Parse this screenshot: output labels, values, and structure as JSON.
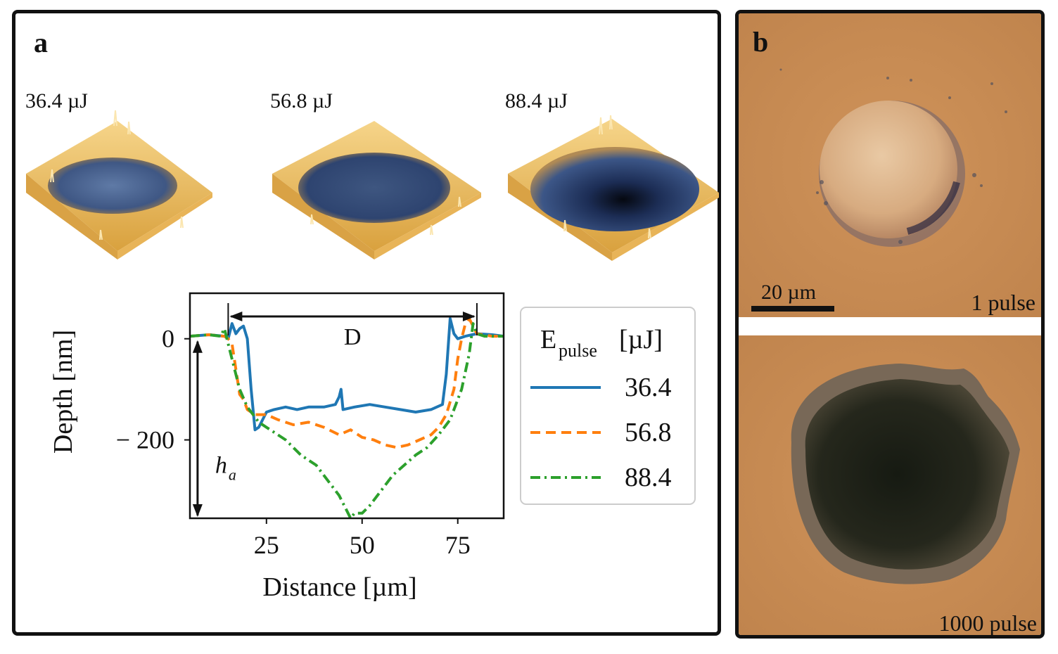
{
  "panel_a": {
    "letter": "a",
    "afm_labels": [
      "36.4 µJ",
      "56.8 µJ",
      "88.4 µJ"
    ]
  },
  "panel_b": {
    "letter": "b",
    "scale_bar": "20 µm",
    "top_caption": "1 pulse",
    "bottom_caption": "1000 pulse"
  },
  "chart_data": {
    "type": "line",
    "xlabel": "Distance [µm]",
    "ylabel": "Depth [nm]",
    "xlim": [
      5,
      87
    ],
    "ylim": [
      -355,
      90
    ],
    "xticks": [
      25,
      50,
      75
    ],
    "yticks": [
      0,
      -200
    ],
    "ytick_labels": [
      "0",
      "− 200"
    ],
    "legend_title": "E",
    "legend_title_sub": "pulse",
    "legend_title_unit": "[µJ]",
    "annotations": {
      "diameter": "D",
      "depth_main": "h",
      "depth_sub": "a"
    },
    "diameter_range": [
      15,
      80
    ],
    "depth_marker_x": 7,
    "depth_value": -355,
    "series": [
      {
        "name": "36.4",
        "color": "#1f77b4",
        "dash": "solid",
        "x": [
          5,
          10,
          14,
          15,
          16,
          17,
          18,
          19,
          20,
          21,
          22,
          23,
          25,
          27,
          30,
          33,
          36,
          40,
          43,
          44,
          44.5,
          45,
          48,
          52,
          56,
          60,
          64,
          68,
          71,
          72,
          73,
          74,
          75,
          77,
          80,
          84,
          87
        ],
        "y": [
          5,
          8,
          5,
          0,
          30,
          10,
          20,
          25,
          0,
          -100,
          -180,
          -175,
          -145,
          -140,
          -135,
          -140,
          -135,
          -135,
          -130,
          -115,
          -100,
          -140,
          -135,
          -130,
          -135,
          -140,
          -145,
          -140,
          -130,
          -70,
          40,
          10,
          0,
          5,
          10,
          8,
          5
        ]
      },
      {
        "name": "56.8",
        "color": "#ff7f0e",
        "dash": "14 8",
        "x": [
          5,
          10,
          14,
          15,
          16,
          17,
          18,
          19,
          20,
          22,
          25,
          28,
          32,
          36,
          40,
          44,
          47,
          50,
          53,
          56,
          59,
          62,
          65,
          68,
          70,
          72,
          74,
          75,
          76,
          77,
          78,
          80,
          84,
          87
        ],
        "y": [
          5,
          8,
          5,
          0,
          -10,
          -60,
          -110,
          -120,
          -140,
          -150,
          -150,
          -160,
          -170,
          -165,
          -175,
          -190,
          -180,
          -195,
          -200,
          -210,
          -215,
          -210,
          -200,
          -190,
          -175,
          -150,
          -100,
          -40,
          0,
          30,
          40,
          10,
          5,
          5
        ]
      },
      {
        "name": "88.4",
        "color": "#2ca02c",
        "dash": "14 6 3 6",
        "x": [
          5,
          10,
          13,
          14,
          15,
          16,
          18,
          20,
          23,
          26,
          30,
          34,
          38,
          41,
          44,
          46,
          47,
          48,
          50,
          52,
          55,
          58,
          61,
          64,
          67,
          70,
          73,
          76,
          78,
          79,
          80,
          82,
          84,
          87
        ],
        "y": [
          5,
          8,
          5,
          20,
          -10,
          -40,
          -100,
          -135,
          -165,
          -180,
          -200,
          -230,
          -250,
          -280,
          -310,
          -340,
          -355,
          -345,
          -345,
          -330,
          -300,
          -270,
          -250,
          -230,
          -215,
          -190,
          -160,
          -100,
          -30,
          30,
          10,
          5,
          5,
          5
        ]
      }
    ]
  }
}
